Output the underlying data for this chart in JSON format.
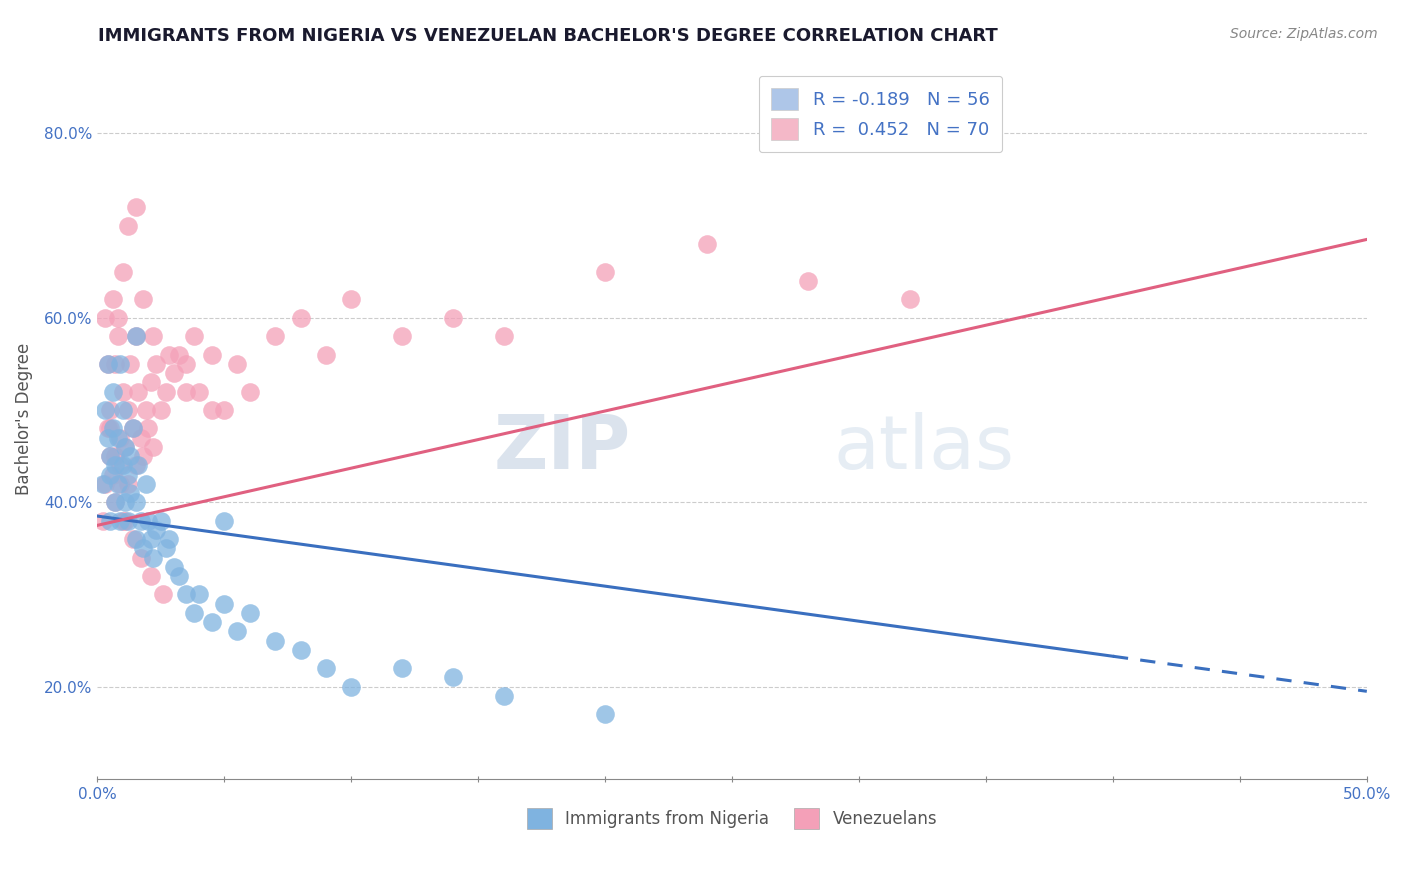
{
  "title": "IMMIGRANTS FROM NIGERIA VS VENEZUELAN BACHELOR'S DEGREE CORRELATION CHART",
  "source_text": "Source: ZipAtlas.com",
  "ylabel": "Bachelor's Degree",
  "xlim": [
    0.0,
    0.5
  ],
  "ylim": [
    0.1,
    0.88
  ],
  "x_ticks": [
    0.0,
    0.05,
    0.1,
    0.15,
    0.2,
    0.25,
    0.3,
    0.35,
    0.4,
    0.45,
    0.5
  ],
  "x_tick_labels_shown": {
    "0.0": "0.0%",
    "0.50": "50.0%"
  },
  "y_ticks": [
    0.2,
    0.4,
    0.6,
    0.8
  ],
  "y_tick_labels": [
    "20.0%",
    "40.0%",
    "60.0%",
    "80.0%"
  ],
  "legend_entries": [
    {
      "label": "R = -0.189   N = 56",
      "color": "#aec6e8"
    },
    {
      "label": "R =  0.452   N = 70",
      "color": "#f4b8c8"
    }
  ],
  "nigeria_color": "#7fb3e0",
  "venezuela_color": "#f4a0b8",
  "nigeria_line_color": "#3a6fbf",
  "venezuela_line_color": "#e06080",
  "nigeria_line_solid_end": 0.4,
  "nigeria_line_x0": 0.0,
  "nigeria_line_y0": 0.385,
  "nigeria_line_x1": 0.5,
  "nigeria_line_y1": 0.195,
  "venezuela_line_x0": 0.0,
  "venezuela_line_y0": 0.375,
  "venezuela_line_x1": 0.5,
  "venezuela_line_y1": 0.685,
  "watermark_zip": "ZIP",
  "watermark_atlas": "atlas",
  "background_color": "#ffffff",
  "grid_color": "#cccccc",
  "title_color": "#1a1a2e",
  "axis_label_color": "#555555",
  "tick_label_color": "#4472c4",
  "nigeria_scatter_x": [
    0.002,
    0.003,
    0.004,
    0.004,
    0.005,
    0.005,
    0.005,
    0.006,
    0.006,
    0.007,
    0.007,
    0.008,
    0.008,
    0.009,
    0.009,
    0.01,
    0.01,
    0.011,
    0.011,
    0.012,
    0.012,
    0.013,
    0.013,
    0.014,
    0.015,
    0.015,
    0.016,
    0.017,
    0.018,
    0.019,
    0.02,
    0.021,
    0.022,
    0.023,
    0.025,
    0.027,
    0.03,
    0.032,
    0.035,
    0.038,
    0.04,
    0.045,
    0.05,
    0.055,
    0.06,
    0.07,
    0.08,
    0.09,
    0.1,
    0.12,
    0.14,
    0.16,
    0.2,
    0.05,
    0.028,
    0.015
  ],
  "nigeria_scatter_y": [
    0.42,
    0.5,
    0.47,
    0.55,
    0.43,
    0.38,
    0.45,
    0.48,
    0.52,
    0.4,
    0.44,
    0.47,
    0.42,
    0.55,
    0.38,
    0.44,
    0.5,
    0.4,
    0.46,
    0.43,
    0.38,
    0.45,
    0.41,
    0.48,
    0.4,
    0.36,
    0.44,
    0.38,
    0.35,
    0.42,
    0.38,
    0.36,
    0.34,
    0.37,
    0.38,
    0.35,
    0.33,
    0.32,
    0.3,
    0.28,
    0.3,
    0.27,
    0.29,
    0.26,
    0.28,
    0.25,
    0.24,
    0.22,
    0.2,
    0.22,
    0.21,
    0.19,
    0.17,
    0.38,
    0.36,
    0.58
  ],
  "venezuela_scatter_x": [
    0.002,
    0.003,
    0.004,
    0.005,
    0.005,
    0.006,
    0.007,
    0.007,
    0.008,
    0.009,
    0.009,
    0.01,
    0.01,
    0.011,
    0.012,
    0.012,
    0.013,
    0.014,
    0.015,
    0.015,
    0.016,
    0.017,
    0.018,
    0.019,
    0.02,
    0.021,
    0.022,
    0.023,
    0.025,
    0.027,
    0.03,
    0.032,
    0.035,
    0.038,
    0.04,
    0.045,
    0.05,
    0.055,
    0.06,
    0.07,
    0.08,
    0.09,
    0.1,
    0.12,
    0.14,
    0.16,
    0.2,
    0.24,
    0.28,
    0.32,
    0.006,
    0.008,
    0.01,
    0.012,
    0.015,
    0.018,
    0.022,
    0.028,
    0.035,
    0.045,
    0.003,
    0.004,
    0.005,
    0.007,
    0.009,
    0.011,
    0.014,
    0.017,
    0.021,
    0.026
  ],
  "venezuela_scatter_y": [
    0.38,
    0.42,
    0.48,
    0.5,
    0.45,
    0.43,
    0.55,
    0.4,
    0.6,
    0.47,
    0.44,
    0.52,
    0.38,
    0.46,
    0.5,
    0.42,
    0.55,
    0.48,
    0.44,
    0.58,
    0.52,
    0.47,
    0.45,
    0.5,
    0.48,
    0.53,
    0.46,
    0.55,
    0.5,
    0.52,
    0.54,
    0.56,
    0.55,
    0.58,
    0.52,
    0.56,
    0.5,
    0.55,
    0.52,
    0.58,
    0.6,
    0.56,
    0.62,
    0.58,
    0.6,
    0.58,
    0.65,
    0.68,
    0.64,
    0.62,
    0.62,
    0.58,
    0.65,
    0.7,
    0.72,
    0.62,
    0.58,
    0.56,
    0.52,
    0.5,
    0.6,
    0.55,
    0.48,
    0.45,
    0.42,
    0.38,
    0.36,
    0.34,
    0.32,
    0.3
  ]
}
